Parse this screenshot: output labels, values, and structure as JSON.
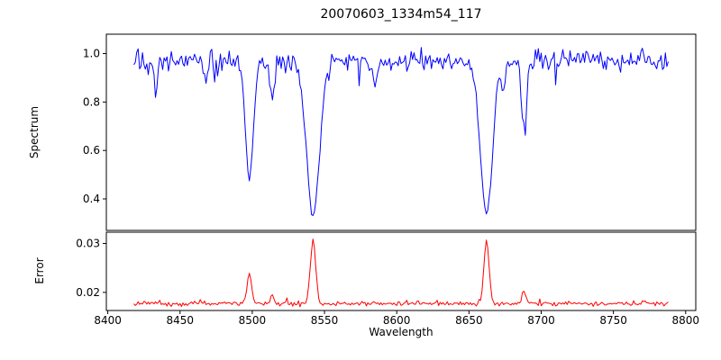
{
  "chart_data": {
    "type": "line",
    "title": "20070603_1334m54_117",
    "xlabel": "Wavelength",
    "xlim": [
      8399,
      8807
    ],
    "x_ticks": [
      8400,
      8450,
      8500,
      8550,
      8600,
      8650,
      8700,
      8750,
      8800
    ],
    "x_tick_labels": [
      "8400",
      "8450",
      "8500",
      "8550",
      "8600",
      "8650",
      "8700",
      "8750",
      "8800"
    ],
    "x_range_of_data": [
      8418,
      8788
    ],
    "legend": "none",
    "grid": false,
    "panels": [
      {
        "name": "spectrum",
        "ylabel": "Spectrum",
        "ylim": [
          0.27,
          1.08
        ],
        "y_ticks": [
          0.4,
          0.6,
          0.8,
          1.0
        ],
        "y_tick_labels": [
          "0.4",
          "0.6",
          "0.8",
          "1.0"
        ],
        "color": "#0000ff",
        "continuum_level": 0.97,
        "noise_sigma": 0.02,
        "absorption_lines": [
          {
            "center": 8433,
            "depth": 0.11,
            "width": 1.4
          },
          {
            "center": 8468,
            "depth": 0.09,
            "width": 1.3
          },
          {
            "center": 8498.0,
            "depth": 0.5,
            "width": 2.8
          },
          {
            "center": 8514,
            "depth": 0.17,
            "width": 1.5
          },
          {
            "center": 8542.1,
            "depth": 0.66,
            "width": 4.5
          },
          {
            "center": 8585,
            "depth": 0.1,
            "width": 1.3
          },
          {
            "center": 8662.1,
            "depth": 0.65,
            "width": 4.2
          },
          {
            "center": 8674,
            "depth": 0.12,
            "width": 1.4
          },
          {
            "center": 8688,
            "depth": 0.28,
            "width": 1.8
          }
        ]
      },
      {
        "name": "error",
        "ylabel": "Error",
        "ylim": [
          0.0163,
          0.0323
        ],
        "y_ticks": [
          0.02,
          0.03
        ],
        "y_tick_labels": [
          "0.02",
          "0.03"
        ],
        "color": "#ff0000",
        "baseline_level": 0.0177,
        "noise_sigma": 0.00022,
        "peaks": [
          {
            "center": 8498.0,
            "height": 0.0059,
            "width": 1.6
          },
          {
            "center": 8514,
            "height": 0.0012,
            "width": 1.2
          },
          {
            "center": 8542.1,
            "height": 0.0131,
            "width": 1.8
          },
          {
            "center": 8662.1,
            "height": 0.0125,
            "width": 1.8
          },
          {
            "center": 8688,
            "height": 0.0028,
            "width": 1.2
          }
        ]
      }
    ]
  }
}
